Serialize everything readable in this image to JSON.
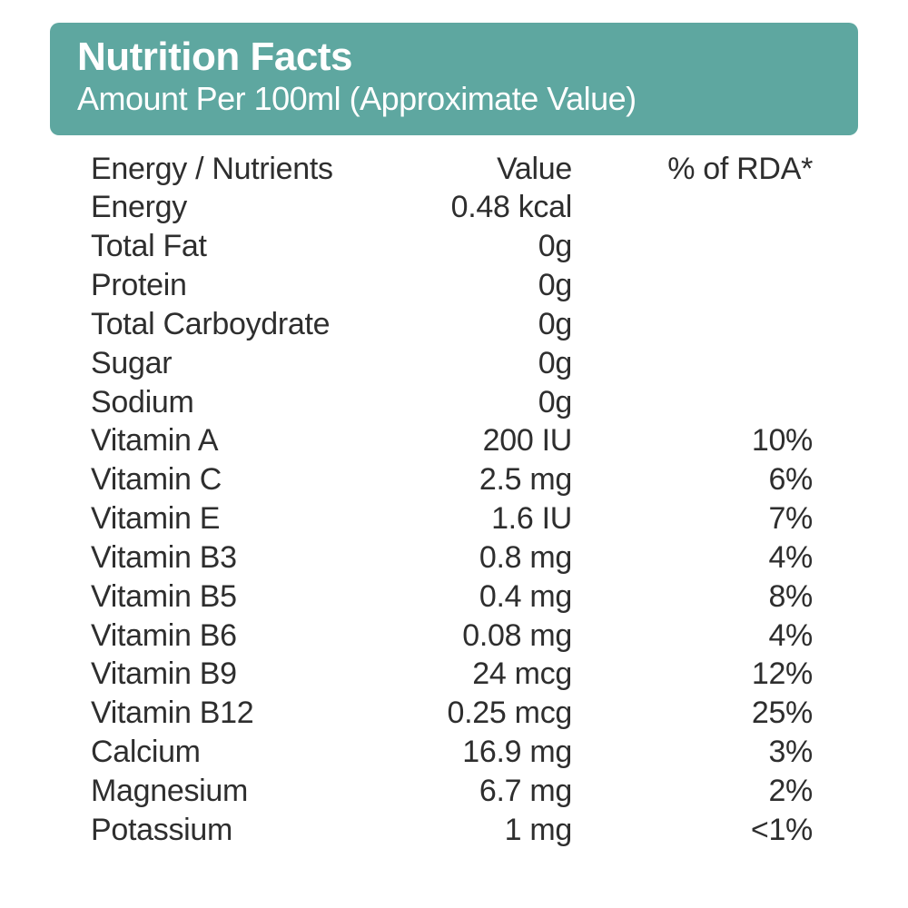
{
  "header": {
    "title": "Nutrition Facts",
    "subtitle": "Amount Per 100ml (Approximate Value)",
    "background_color": "#5ea7a0",
    "text_color": "#ffffff",
    "title_fontsize": 44,
    "subtitle_fontsize": 36,
    "border_radius": 10
  },
  "table": {
    "type": "table",
    "text_color": "#2e2e2e",
    "row_fontsize": 34,
    "columns": [
      {
        "key": "name",
        "label": "Energy / Nutrients",
        "align": "left"
      },
      {
        "key": "value",
        "label": "Value",
        "align": "right"
      },
      {
        "key": "rda",
        "label": "% of RDA*",
        "align": "right"
      }
    ],
    "rows": [
      {
        "name": "Energy",
        "value": "0.48 kcal",
        "rda": ""
      },
      {
        "name": "Total Fat",
        "value": "0g",
        "rda": ""
      },
      {
        "name": "Protein",
        "value": "0g",
        "rda": ""
      },
      {
        "name": "Total Carboydrate",
        "value": "0g",
        "rda": ""
      },
      {
        "name": "Sugar",
        "value": "0g",
        "rda": ""
      },
      {
        "name": "Sodium",
        "value": "0g",
        "rda": ""
      },
      {
        "name": "Vitamin A",
        "value": "200 IU",
        "rda": "10%"
      },
      {
        "name": "Vitamin C",
        "value": "2.5 mg",
        "rda": "6%"
      },
      {
        "name": "Vitamin E",
        "value": "1.6 IU",
        "rda": "7%"
      },
      {
        "name": "Vitamin B3",
        "value": "0.8 mg",
        "rda": "4%"
      },
      {
        "name": "Vitamin B5",
        "value": "0.4 mg",
        "rda": "8%"
      },
      {
        "name": "Vitamin B6",
        "value": "0.08 mg",
        "rda": "4%"
      },
      {
        "name": "Vitamin B9",
        "value": "24 mcg",
        "rda": "12%"
      },
      {
        "name": "Vitamin B12",
        "value": "0.25 mcg",
        "rda": "25%"
      },
      {
        "name": "Calcium",
        "value": "16.9 mg",
        "rda": "3%"
      },
      {
        "name": "Magnesium",
        "value": "6.7 mg",
        "rda": "2%"
      },
      {
        "name": "Potassium",
        "value": "1 mg",
        "rda": "<1%"
      }
    ]
  }
}
